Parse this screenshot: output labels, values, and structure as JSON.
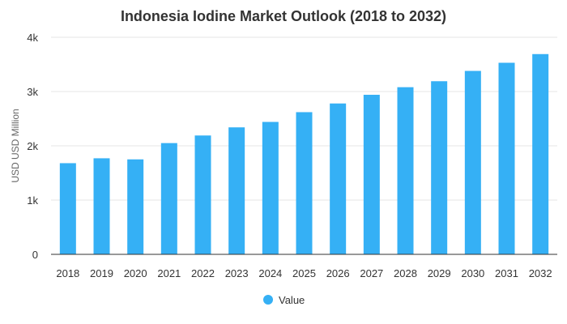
{
  "chart_data": {
    "type": "bar",
    "title": "Indonesia Iodine Market Outlook (2018 to 2032)",
    "xlabel": "",
    "ylabel": "USD USD Million",
    "categories": [
      "2018",
      "2019",
      "2020",
      "2021",
      "2022",
      "2023",
      "2024",
      "2025",
      "2026",
      "2027",
      "2028",
      "2029",
      "2030",
      "2031",
      "2032"
    ],
    "series": [
      {
        "name": "Value",
        "values": [
          1680,
          1770,
          1750,
          2050,
          2190,
          2340,
          2440,
          2620,
          2780,
          2940,
          3080,
          3190,
          3380,
          3530,
          3690
        ],
        "color": "#35b0f5"
      }
    ],
    "ylim": [
      0,
      4000
    ],
    "yticks": [
      0,
      1000,
      2000,
      3000,
      4000
    ],
    "ytick_labels": [
      "0",
      "1k",
      "2k",
      "3k",
      "4k"
    ],
    "grid": true,
    "legend_position": "bottom"
  }
}
